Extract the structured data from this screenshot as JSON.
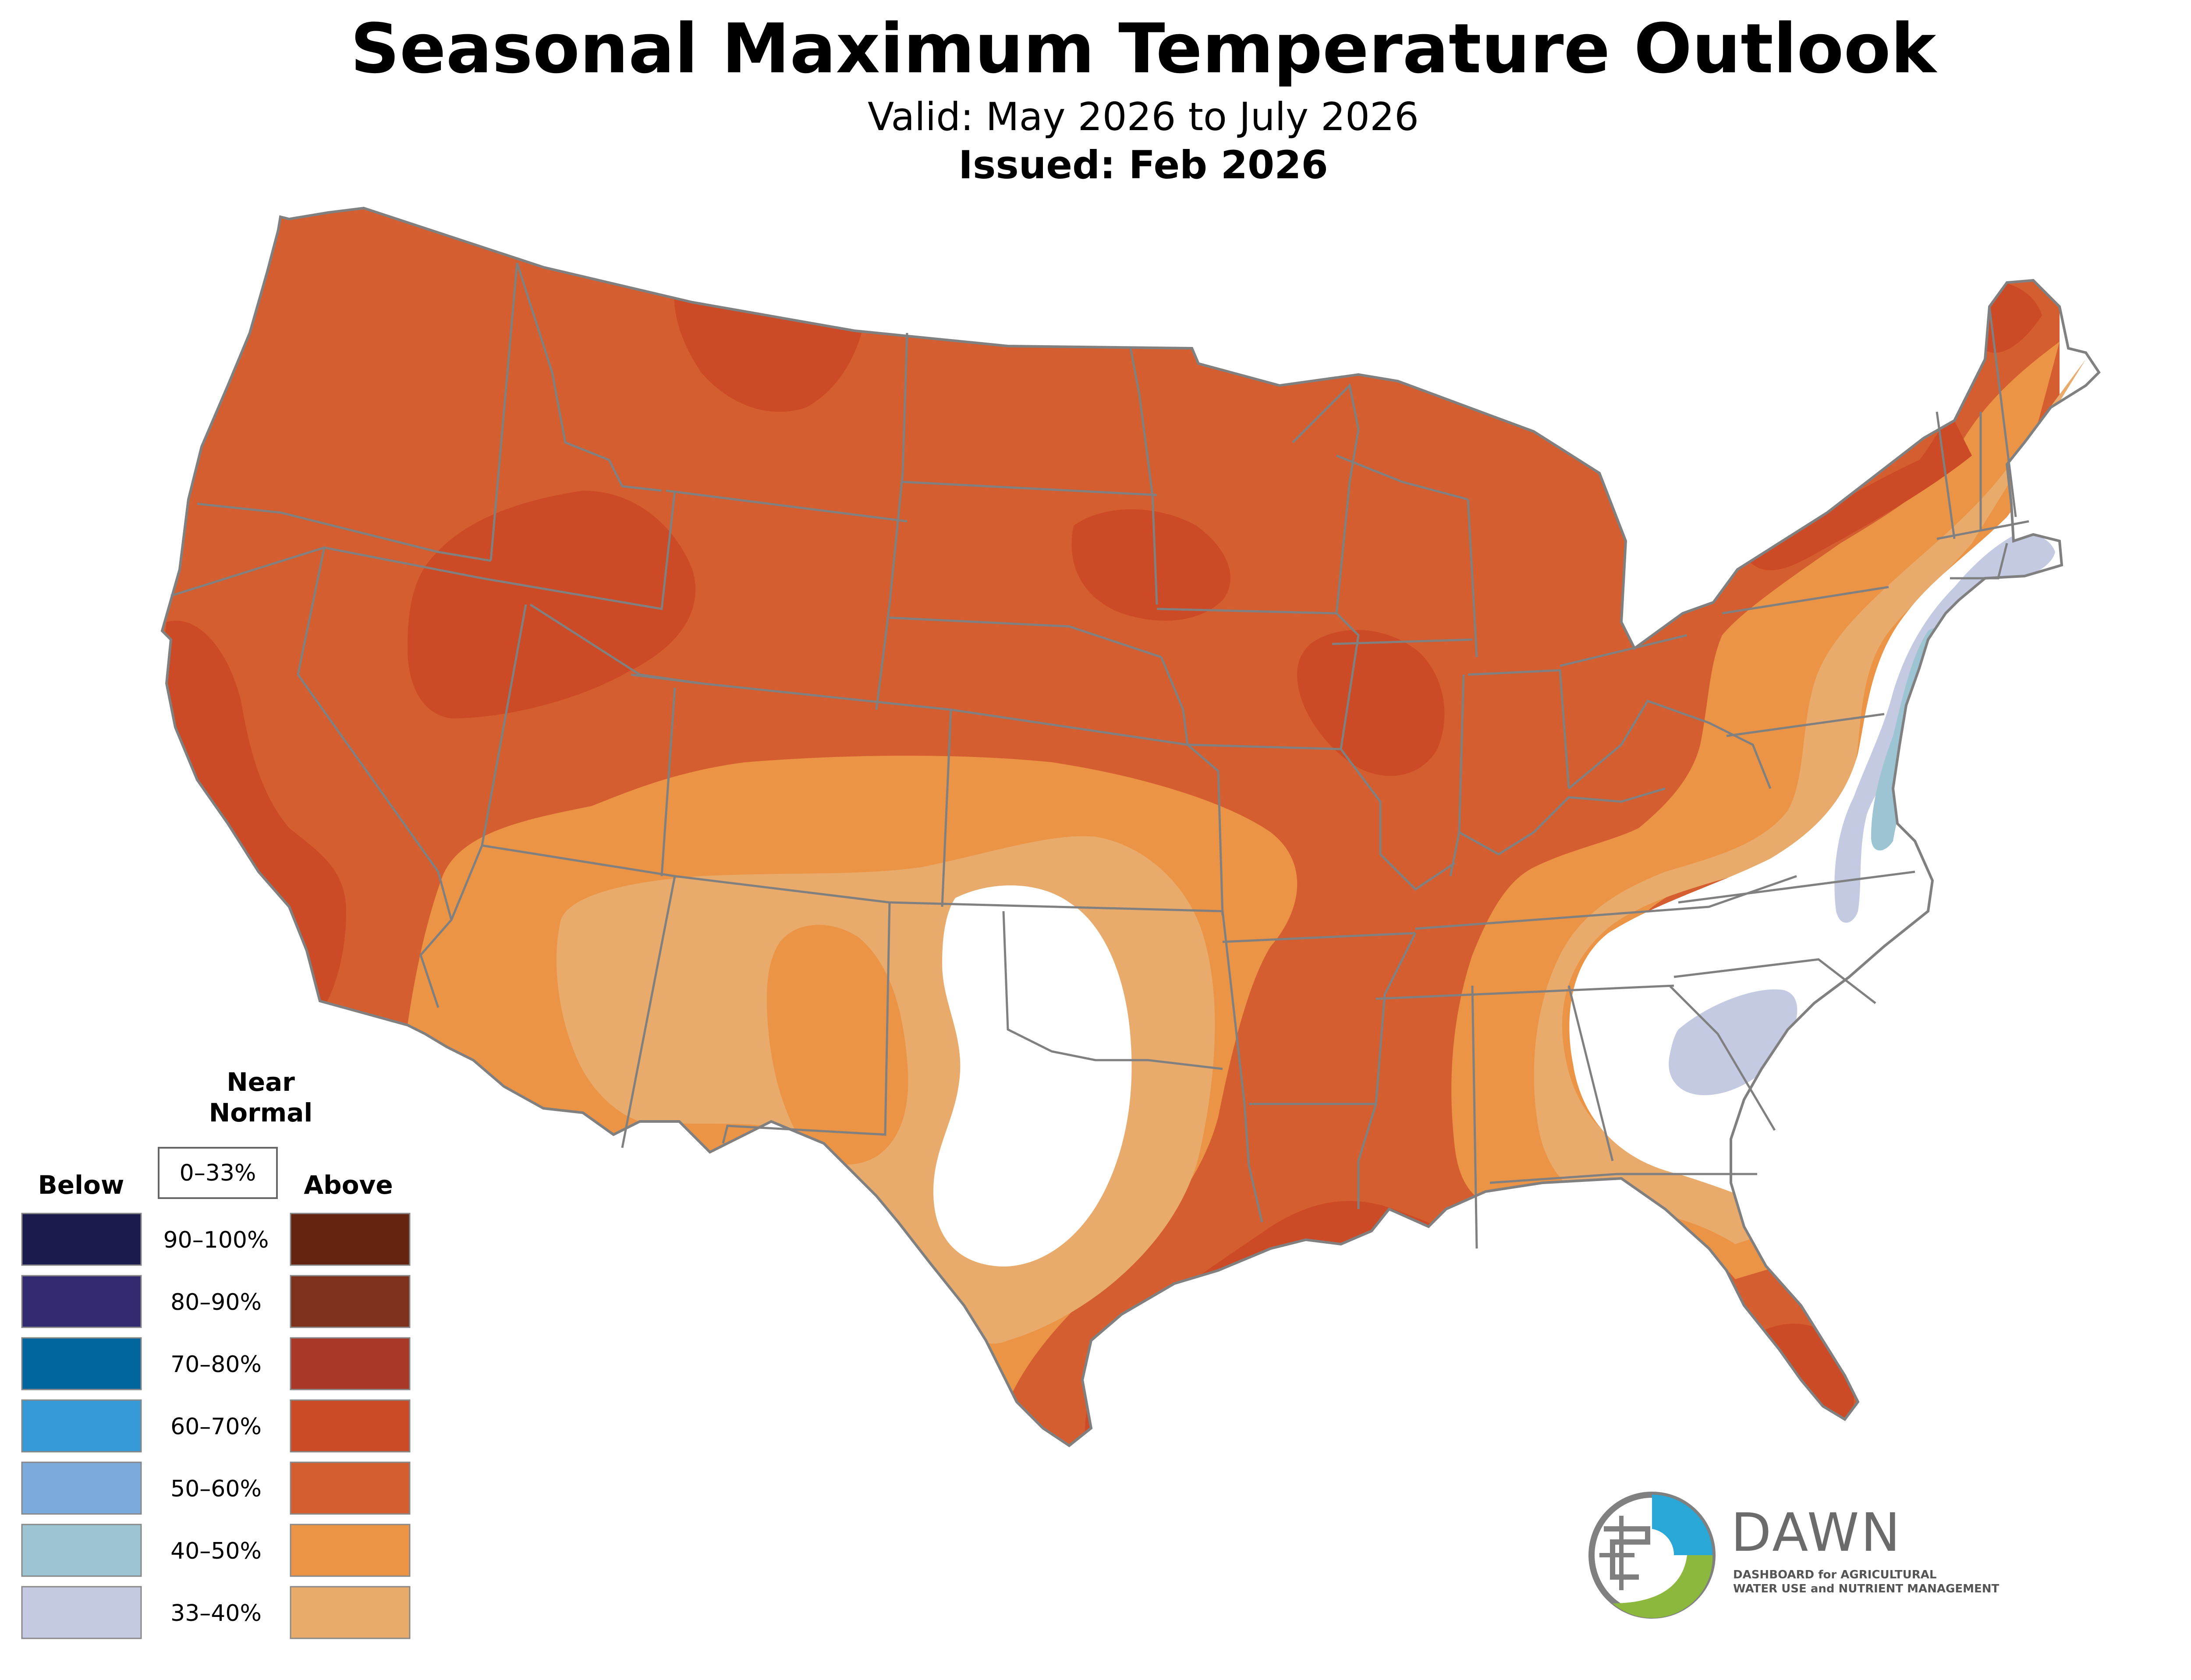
{
  "title": "Seasonal Maximum Temperature Outlook",
  "valid": "Valid: May 2026 to July 2026",
  "issued": "Issued: Feb 2026",
  "colors": {
    "state_border": "#808080",
    "above_33_40": "#e8ab6b",
    "above_40_50": "#ec9446",
    "above_50_60": "#d45e30",
    "above_60_70": "#cc4a25",
    "above_70_80": "#a93827",
    "above_80_90": "#7f321b",
    "above_90_100": "#652410",
    "below_33_40": "#c5cae3",
    "below_40_50": "#9dc4d2",
    "below_50_60": "#7aabdc",
    "below_60_70": "#3499d6",
    "below_70_80": "#00669d",
    "below_80_90": "#332b71",
    "below_90_100": "#1c1b4e"
  },
  "legend": {
    "below_label": "Below",
    "above_label": "Above",
    "near_normal_line1": "Near",
    "near_normal_line2": "Normal",
    "near_normal_range": "0–33%",
    "ranges": [
      "90–100%",
      "80–90%",
      "70–80%",
      "60–70%",
      "50–60%",
      "40–50%",
      "33–40%"
    ]
  },
  "logo": {
    "name": "DAWN",
    "subtitle_line1": "DASHBOARD for AGRICULTURAL",
    "subtitle_line2": "WATER USE and NUTRIENT MANAGEMENT",
    "colors": {
      "blue": "#29a8d8",
      "green": "#8cb83e",
      "gray": "#808080"
    }
  }
}
